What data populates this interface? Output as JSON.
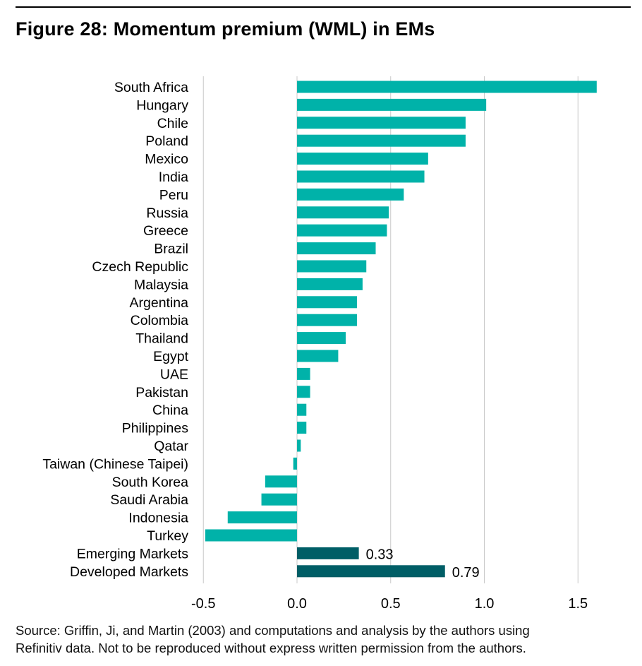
{
  "header": {
    "title": "Figure 28: Momentum premium (WML) in EMs"
  },
  "chart_data": {
    "type": "bar",
    "orientation": "horizontal",
    "title": "Figure 28: Momentum premium (WML) in EMs",
    "xlabel": "",
    "ylabel": "",
    "xlim": [
      -0.5,
      1.6
    ],
    "ticks": [
      -0.5,
      0.0,
      0.5,
      1.0,
      1.5
    ],
    "tick_labels": [
      "-0.5",
      "0.0",
      "0.5",
      "1.0",
      "1.5"
    ],
    "grid": true,
    "colors": {
      "country": "#00b2a9",
      "aggregate": "#005e66"
    },
    "categories": [
      "South Africa",
      "Hungary",
      "Chile",
      "Poland",
      "Mexico",
      "India",
      "Peru",
      "Russia",
      "Greece",
      "Brazil",
      "Czech Republic",
      "Malaysia",
      "Argentina",
      "Colombia",
      "Thailand",
      "Egypt",
      "UAE",
      "Pakistan",
      "China",
      "Philippines",
      "Qatar",
      "Taiwan (Chinese Taipei)",
      "South Korea",
      "Saudi Arabia",
      "Indonesia",
      "Turkey",
      "Emerging Markets",
      "Developed Markets"
    ],
    "values": [
      1.6,
      1.01,
      0.9,
      0.9,
      0.7,
      0.68,
      0.57,
      0.49,
      0.48,
      0.42,
      0.37,
      0.35,
      0.32,
      0.32,
      0.26,
      0.22,
      0.07,
      0.07,
      0.05,
      0.05,
      0.02,
      -0.02,
      -0.17,
      -0.19,
      -0.37,
      -0.49,
      0.33,
      0.79
    ],
    "aggregate": [
      false,
      false,
      false,
      false,
      false,
      false,
      false,
      false,
      false,
      false,
      false,
      false,
      false,
      false,
      false,
      false,
      false,
      false,
      false,
      false,
      false,
      false,
      false,
      false,
      false,
      false,
      true,
      true
    ],
    "data_labels": [
      "",
      "",
      "",
      "",
      "",
      "",
      "",
      "",
      "",
      "",
      "",
      "",
      "",
      "",
      "",
      "",
      "",
      "",
      "",
      "",
      "",
      "",
      "",
      "",
      "",
      "",
      "0.33",
      "0.79"
    ]
  },
  "footer": {
    "source_line1": "Source: Griffin, Ji, and Martin (2003) and computations and analysis by the authors using",
    "source_line2": "Refinitiv data. Not to be reproduced without express written permission from the authors."
  }
}
